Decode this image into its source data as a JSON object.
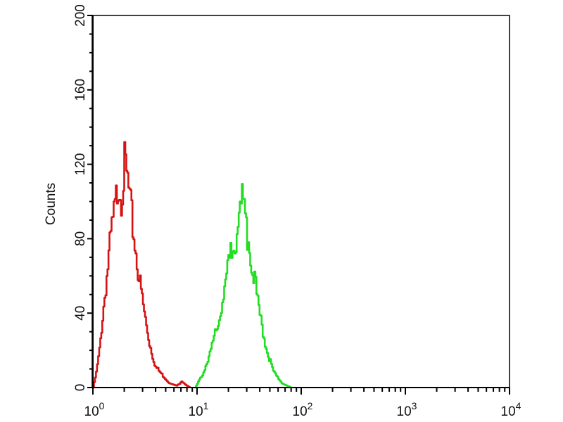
{
  "chart_data": {
    "type": "line",
    "title": "",
    "xlabel": "",
    "ylabel": "Counts",
    "xscale": "log",
    "xlim": [
      1,
      10000
    ],
    "ylim": [
      0,
      200
    ],
    "grid": false,
    "legend": "none",
    "x_tick_labels": [
      {
        "base": "10",
        "exp": "0"
      },
      {
        "base": "10",
        "exp": "1"
      },
      {
        "base": "10",
        "exp": "2"
      },
      {
        "base": "10",
        "exp": "3"
      },
      {
        "base": "10",
        "exp": "4"
      }
    ],
    "y_ticks": [
      0,
      40,
      80,
      120,
      160,
      200
    ],
    "y_tick_labels": [
      "0",
      "40",
      "80",
      "120",
      "160",
      "200"
    ],
    "series": [
      {
        "color": "#d41414",
        "x": [
          1.0,
          1.07,
          1.15,
          1.23,
          1.32,
          1.41,
          1.51,
          1.62,
          1.74,
          1.86,
          2.0,
          2.14,
          2.29,
          2.45,
          2.63,
          2.82,
          3.02,
          3.24,
          3.47,
          3.72,
          3.98,
          4.27,
          4.57,
          4.9,
          5.25,
          5.62,
          6.31,
          7.08,
          7.94,
          8.51
        ],
        "y": [
          0,
          8,
          20,
          38,
          55,
          70,
          85,
          95,
          112,
          105,
          118,
          110,
          95,
          82,
          68,
          55,
          44,
          33,
          24,
          17,
          11,
          9,
          7,
          5,
          3,
          2,
          1,
          3,
          1,
          0
        ]
      },
      {
        "color": "#22dd22",
        "x": [
          9.55,
          10.2,
          10.96,
          11.75,
          12.59,
          13.49,
          14.45,
          15.49,
          16.6,
          17.78,
          19.05,
          20.42,
          21.88,
          23.44,
          25.12,
          26.92,
          28.84,
          30.9,
          33.11,
          35.48,
          38.02,
          40.74,
          43.65,
          46.77,
          50.12,
          53.7,
          57.54,
          61.66,
          66.07,
          72.44,
          79.43
        ],
        "y": [
          0,
          3,
          6,
          10,
          15,
          20,
          27,
          35,
          42,
          50,
          58,
          68,
          78,
          82,
          95,
          100,
          88,
          80,
          70,
          58,
          45,
          35,
          27,
          20,
          14,
          9,
          6,
          4,
          2,
          1,
          0
        ]
      }
    ]
  }
}
